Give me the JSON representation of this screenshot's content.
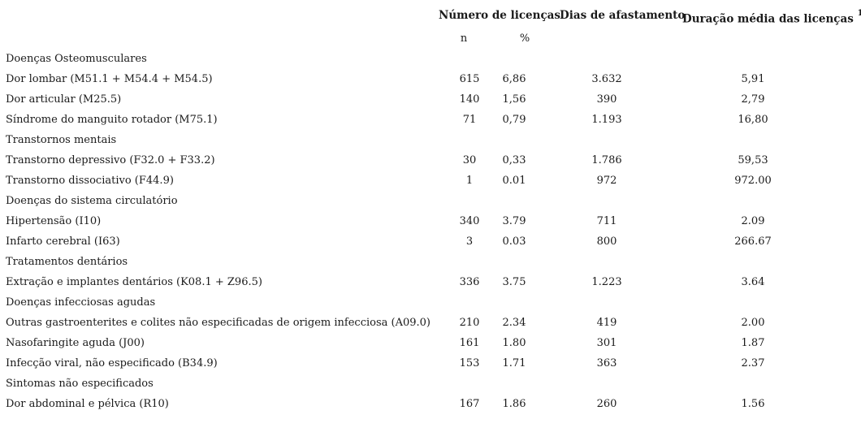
{
  "header": {
    "num_licencas": "Número de licenças",
    "dias_afastamento": "Dias de afastamento",
    "duracao_media": "Duração média das licenças",
    "duracao_footnote": "1",
    "sub_n": "n",
    "sub_pct": "%"
  },
  "rows": [
    {
      "label": "Doenças Osteomusculares",
      "n": "",
      "pct": "",
      "dias": "",
      "dur": ""
    },
    {
      "label": "Dor lombar (M51.1 + M54.4 + M54.5)",
      "n": "615",
      "pct": "6,86",
      "dias": "3.632",
      "dur": "5,91"
    },
    {
      "label": "Dor articular (M25.5)",
      "n": "140",
      "pct": "1,56",
      "dias": "390",
      "dur": "2,79"
    },
    {
      "label": "Síndrome do manguito rotador (M75.1)",
      "n": "71",
      "pct": "0,79",
      "dias": "1.193",
      "dur": "16,80"
    },
    {
      "label": "Transtornos mentais",
      "n": "",
      "pct": "",
      "dias": "",
      "dur": ""
    },
    {
      "label": "Transtorno depressivo (F32.0 + F33.2)",
      "n": "30",
      "pct": "0,33",
      "dias": "1.786",
      "dur": "59,53"
    },
    {
      "label": "Transtorno dissociativo (F44.9)",
      "n": "1",
      "pct": "0.01",
      "dias": "972",
      "dur": "972.00"
    },
    {
      "label": "Doenças do sistema circulatório",
      "n": "",
      "pct": "",
      "dias": "",
      "dur": ""
    },
    {
      "label": "Hipertensão (I10)",
      "n": "340",
      "pct": "3.79",
      "dias": "711",
      "dur": "2.09"
    },
    {
      "label": "Infarto cerebral (I63)",
      "n": "3",
      "pct": "0.03",
      "dias": "800",
      "dur": "266.67"
    },
    {
      "label": "Tratamentos dentários",
      "n": "",
      "pct": "",
      "dias": "",
      "dur": ""
    },
    {
      "label": "Extração e implantes dentários (K08.1 + Z96.5)",
      "n": "336",
      "pct": "3.75",
      "dias": "1.223",
      "dur": "3.64"
    },
    {
      "label": "Doenças infecciosas agudas",
      "n": "",
      "pct": "",
      "dias": "",
      "dur": ""
    },
    {
      "label": "Outras gastroenterites e colites não especificadas de origem infecciosa (A09.0)",
      "n": "210",
      "pct": "2.34",
      "dias": "419",
      "dur": "2.00"
    },
    {
      "label": "Nasofaringite aguda (J00)",
      "n": "161",
      "pct": "1.80",
      "dias": "301",
      "dur": "1.87"
    },
    {
      "label": "Infecção viral, não especificado (B34.9)",
      "n": "153",
      "pct": "1.71",
      "dias": "363",
      "dur": "2.37"
    },
    {
      "label": "Sintomas não especificados",
      "n": "",
      "pct": "",
      "dias": "",
      "dur": ""
    },
    {
      "label": "Dor abdominal e pélvica (R10)",
      "n": "167",
      "pct": "1.86",
      "dias": "260",
      "dur": "1.56"
    }
  ]
}
